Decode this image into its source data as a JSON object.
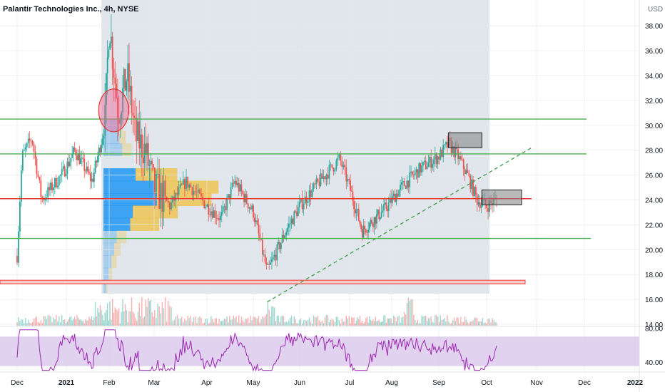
{
  "header": {
    "title": "Palantir Technologies Inc., 4h, NYSE",
    "currency": "USD"
  },
  "colors": {
    "up": "#26a69a",
    "down": "#ef5350",
    "volume_profile_blue": "#2196f3",
    "volume_profile_yellow": "#f0c040",
    "support_lines": "#4caf50",
    "key_level": "#e53935",
    "rsi_line": "#9c27b0",
    "rsi_band": "#d9c7ec",
    "range_shade": "#d6dee6"
  },
  "chart_data": [
    {
      "type": "candlestick",
      "title": "Palantir Technologies Inc., 4h, NYSE",
      "ylabel": "USD",
      "ylim": [
        14,
        40
      ],
      "y_ticks": [
        "14.00",
        "16.00",
        "18.00",
        "20.00",
        "22.00",
        "24.00",
        "26.00",
        "28.00",
        "30.00",
        "32.00",
        "34.00",
        "36.00",
        "38.00"
      ],
      "x_ticks": [
        "Dec",
        "2021",
        "Feb",
        "Mar",
        "Apr",
        "May",
        "Jun",
        "Jul",
        "Aug",
        "Sep",
        "Oct",
        "Nov",
        "Dec",
        "2022"
      ],
      "price_path": [
        [
          0,
          19.5
        ],
        [
          0.1,
          27.5
        ],
        [
          0.3,
          29
        ],
        [
          0.5,
          24
        ],
        [
          0.9,
          26
        ],
        [
          1.2,
          28
        ],
        [
          1.6,
          25.5
        ],
        [
          1.9,
          30
        ],
        [
          2.0,
          38.5
        ],
        [
          2.2,
          31
        ],
        [
          2.4,
          34
        ],
        [
          2.6,
          29
        ],
        [
          2.8,
          28
        ],
        [
          3.0,
          25
        ],
        [
          3.3,
          23.5
        ],
        [
          3.6,
          25.5
        ],
        [
          4.0,
          23.5
        ],
        [
          4.3,
          22.5
        ],
        [
          4.6,
          25.5
        ],
        [
          5.0,
          23
        ],
        [
          5.3,
          18.2
        ],
        [
          5.5,
          19.8
        ],
        [
          5.7,
          21.5
        ],
        [
          6.0,
          23.5
        ],
        [
          6.4,
          25.5
        ],
        [
          6.8,
          27.3
        ],
        [
          7.0,
          25
        ],
        [
          7.3,
          21.5
        ],
        [
          7.6,
          22.5
        ],
        [
          7.9,
          23.5
        ],
        [
          8.2,
          25
        ],
        [
          8.6,
          26.5
        ],
        [
          9.0,
          27.5
        ],
        [
          9.2,
          28.5
        ],
        [
          9.4,
          27.5
        ],
        [
          9.6,
          26
        ],
        [
          9.8,
          24
        ],
        [
          10.0,
          23.5
        ],
        [
          10.2,
          24
        ]
      ],
      "horizontal_levels": [
        {
          "value": 30.5,
          "color": "green"
        },
        {
          "value": 27.7,
          "color": "green"
        },
        {
          "value": 24.1,
          "color": "red"
        },
        {
          "value": 20.9,
          "color": "green"
        },
        {
          "value": 17.4,
          "color": "red-band"
        }
      ],
      "trendline": {
        "from": [
          5.3,
          15.8
        ],
        "to": [
          10.9,
          28.2
        ],
        "style": "dashed"
      },
      "annotations": [
        {
          "shape": "circle",
          "center": [
            2.1,
            31.2
          ]
        },
        {
          "shape": "box",
          "x": [
            9.2,
            9.9
          ],
          "y": [
            28.2,
            29.4
          ]
        },
        {
          "shape": "box",
          "x": [
            9.9,
            10.7
          ],
          "y": [
            23.6,
            24.8
          ]
        }
      ],
      "volume_profile": [
        {
          "price": 30.0,
          "blue": 0.3,
          "yellow": 0.05
        },
        {
          "price": 29.0,
          "blue": 0.3,
          "yellow": 0.1
        },
        {
          "price": 28.0,
          "blue": 0.35,
          "yellow": 0.15
        },
        {
          "price": 26.0,
          "blue": 0.6,
          "yellow": 0.65
        },
        {
          "price": 25.0,
          "blue": 0.95,
          "yellow": 1.0
        },
        {
          "price": 24.0,
          "blue": 1.0,
          "yellow": 0.85
        },
        {
          "price": 23.0,
          "blue": 0.55,
          "yellow": 0.7
        },
        {
          "price": 22.0,
          "blue": 0.5,
          "yellow": 0.45
        },
        {
          "price": 21.0,
          "blue": 0.25,
          "yellow": 0.15
        },
        {
          "price": 20.0,
          "blue": 0.2,
          "yellow": 0.1
        },
        {
          "price": 19.0,
          "blue": 0.15,
          "yellow": 0.08
        },
        {
          "price": 18.0,
          "blue": 0.1,
          "yellow": 0.05
        },
        {
          "price": 17.0,
          "blue": 0.05,
          "yellow": 0.02
        }
      ]
    },
    {
      "type": "line",
      "ylabel": "",
      "ylim": [
        28,
        82
      ],
      "y_ticks": [
        "80.00",
        "40.00"
      ],
      "band": [
        35,
        70
      ]
    }
  ]
}
